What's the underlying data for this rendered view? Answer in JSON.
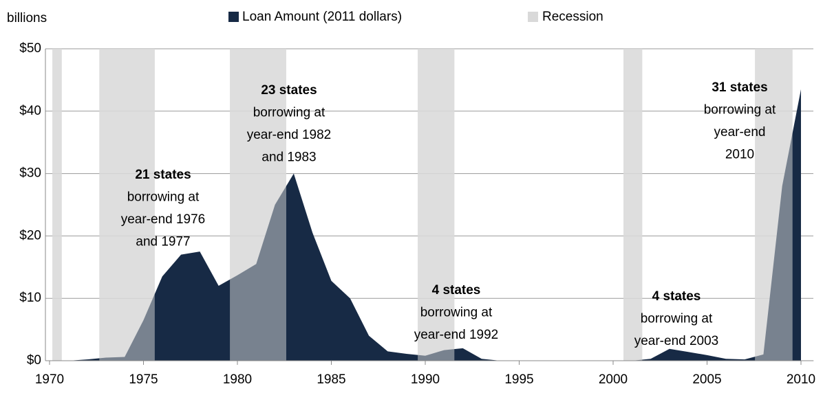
{
  "chart_data": {
    "type": "area",
    "y_unit_label": "billions",
    "x": [
      1971,
      1972,
      1973,
      1974,
      1975,
      1976,
      1977,
      1978,
      1979,
      1980,
      1981,
      1982,
      1983,
      1984,
      1985,
      1986,
      1987,
      1988,
      1989,
      1990,
      1991,
      1992,
      1993,
      1994,
      1995,
      1996,
      1997,
      1998,
      1999,
      2000,
      2001,
      2002,
      2003,
      2004,
      2005,
      2006,
      2007,
      2008,
      2009,
      2010
    ],
    "series": [
      {
        "name": "Loan Amount (2011 dollars)",
        "color": "#172a45",
        "values": [
          0,
          0.2,
          0.5,
          0.6,
          6.5,
          13.5,
          17,
          17.5,
          12,
          13.7,
          15.5,
          25,
          30,
          20.5,
          12.8,
          10,
          4,
          1.5,
          1.1,
          0.8,
          1.7,
          2,
          0.3,
          0,
          0,
          0,
          0,
          0,
          0,
          0,
          0,
          0.3,
          1.9,
          1.4,
          0.9,
          0.3,
          0.2,
          1,
          28,
          43.5
        ]
      }
    ],
    "recessions": {
      "name": "Recession",
      "color": "#d9d9d9",
      "periods": [
        [
          1970.15,
          1970.65
        ],
        [
          1972.65,
          1975.6
        ],
        [
          1979.6,
          1982.6
        ],
        [
          1989.6,
          1991.55
        ],
        [
          2000.55,
          2001.55
        ],
        [
          2007.55,
          2009.55
        ]
      ]
    },
    "annotations": [
      {
        "bold": "21 states",
        "lines": [
          "borrowing at",
          "year-end 1976",
          "and 1977"
        ]
      },
      {
        "bold": "23 states",
        "lines": [
          "borrowing at",
          "year-end 1982",
          "and 1983"
        ]
      },
      {
        "bold": "4 states",
        "lines": [
          "borrowing at",
          "year-end 1992"
        ]
      },
      {
        "bold": "4 states",
        "lines": [
          "borrowing at",
          "year-end 2003"
        ]
      },
      {
        "bold": "31 states",
        "lines": [
          "borrowing at",
          "year-end",
          "2010"
        ]
      }
    ],
    "xlim": [
      1970,
      2010.67
    ],
    "xticks": [
      1970,
      1975,
      1980,
      1985,
      1990,
      1995,
      2000,
      2005,
      2010
    ],
    "ylim": [
      0,
      50
    ],
    "yticks": [
      {
        "value": 0,
        "label": "$0"
      },
      {
        "value": 10,
        "label": "$10"
      },
      {
        "value": 20,
        "label": "$20"
      },
      {
        "value": 30,
        "label": "$30"
      },
      {
        "value": 40,
        "label": "$40"
      },
      {
        "value": 50,
        "label": "$50"
      }
    ],
    "grid": true
  }
}
